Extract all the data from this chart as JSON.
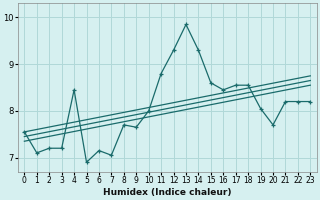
{
  "xlabel": "Humidex (Indice chaleur)",
  "bg_color": "#d6f0f0",
  "grid_color": "#b0d8d8",
  "line_color": "#1a6b6b",
  "xlim": [
    -0.5,
    23.5
  ],
  "ylim": [
    6.7,
    10.3
  ],
  "yticks": [
    7,
    8,
    9,
    10
  ],
  "xticks": [
    0,
    1,
    2,
    3,
    4,
    5,
    6,
    7,
    8,
    9,
    10,
    11,
    12,
    13,
    14,
    15,
    16,
    17,
    18,
    19,
    20,
    21,
    22,
    23
  ],
  "main_x": [
    0,
    1,
    2,
    3,
    4,
    5,
    6,
    7,
    8,
    9,
    10,
    11,
    12,
    13,
    14,
    15,
    16,
    17,
    18,
    19,
    20,
    21,
    22,
    23
  ],
  "main_y": [
    7.55,
    7.1,
    7.2,
    7.2,
    8.45,
    6.9,
    7.15,
    7.05,
    7.7,
    7.65,
    8.0,
    8.8,
    9.3,
    9.85,
    9.3,
    8.6,
    8.45,
    8.55,
    8.55,
    8.05,
    7.7,
    8.2,
    8.2,
    8.2
  ],
  "line1_x": [
    0,
    23
  ],
  "line1_y": [
    7.35,
    8.55
  ],
  "line2_x": [
    0,
    23
  ],
  "line2_y": [
    7.45,
    8.65
  ],
  "line3_x": [
    0,
    23
  ],
  "line3_y": [
    7.55,
    8.75
  ],
  "xlabel_fontsize": 6.5,
  "tick_fontsize": 5.5
}
